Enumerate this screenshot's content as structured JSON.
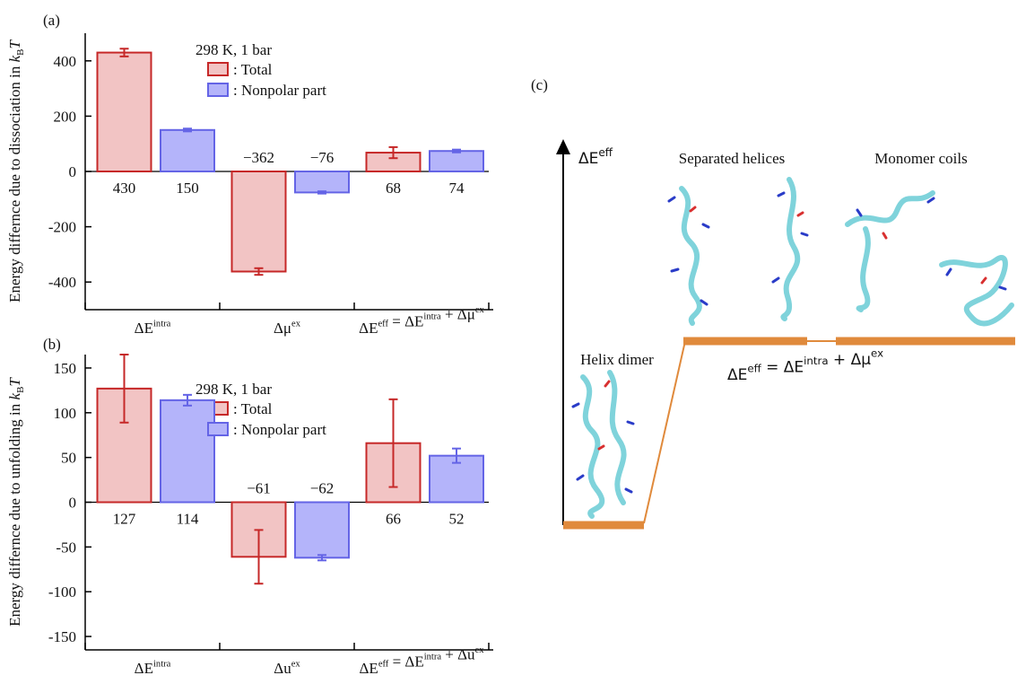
{
  "chart_data": [
    {
      "type": "bar",
      "panel": "(a)",
      "ylabel": [
        "Energy differnce due to dissociation in ",
        "k",
        "B",
        "T"
      ],
      "legend_title": "298 K, 1 bar",
      "categories": [
        [
          {
            "text": "ΔE",
            "sup": "intra"
          }
        ],
        [
          {
            "text": "Δμ",
            "sup": "ex"
          }
        ],
        [
          {
            "text": "ΔE",
            "sup": "eff"
          },
          {
            "text": " = ΔE",
            "sup": "intra"
          },
          {
            "text": " + Δμ",
            "sup": "ex"
          }
        ]
      ],
      "series": [
        {
          "name": ": Total",
          "color": "#c62828",
          "fill": "#f2c4c4",
          "values": [
            430,
            -362,
            68
          ],
          "value_labels": [
            "430",
            "−362",
            "68"
          ],
          "errors": [
            14,
            12,
            20
          ]
        },
        {
          "name": ": Nonpolar part",
          "color": "#6464e6",
          "fill": "#b4b4fa",
          "values": [
            150,
            -76,
            74
          ],
          "value_labels": [
            "150",
            "−76",
            "74"
          ],
          "errors": [
            5,
            4,
            5
          ]
        }
      ],
      "ylim": [
        -500,
        500
      ],
      "yticks": [
        -400,
        -200,
        0,
        200,
        400
      ]
    },
    {
      "type": "bar",
      "panel": "(b)",
      "ylabel": [
        "Energy differnce due to unfolding in ",
        "k",
        "B",
        "T"
      ],
      "legend_title": "298 K, 1 bar",
      "categories": [
        [
          {
            "text": "ΔE",
            "sup": "intra"
          }
        ],
        [
          {
            "text": "Δu",
            "sup": "ex"
          }
        ],
        [
          {
            "text": "ΔE",
            "sup": "eff"
          },
          {
            "text": " = ΔE",
            "sup": "intra"
          },
          {
            "text": " + Δu",
            "sup": "ex"
          }
        ]
      ],
      "series": [
        {
          "name": ": Total",
          "color": "#c62828",
          "fill": "#f2c4c4",
          "values": [
            127,
            -61,
            66
          ],
          "value_labels": [
            "127",
            "−61",
            "66"
          ],
          "errors": [
            38,
            30,
            49
          ]
        },
        {
          "name": ": Nonpolar part",
          "color": "#6464e6",
          "fill": "#b4b4fa",
          "values": [
            114,
            -62,
            52
          ],
          "value_labels": [
            "114",
            "−62",
            "52"
          ],
          "errors": [
            6,
            3,
            8
          ]
        }
      ],
      "ylim": [
        -165,
        165
      ],
      "yticks": [
        -150,
        -100,
        -50,
        0,
        50,
        100,
        150
      ]
    }
  ],
  "diagram": {
    "panel": "(c)",
    "axis_label": {
      "text": "ΔE",
      "sup": "eff"
    },
    "states": [
      "Separated helices",
      "Monomer coils",
      "Helix dimer"
    ],
    "equation": [
      {
        "text": "ΔE",
        "sup": "eff"
      },
      {
        "text": " = ΔE",
        "sup": "intra"
      },
      {
        "text": " + Δμ",
        "sup": "ex"
      }
    ]
  }
}
